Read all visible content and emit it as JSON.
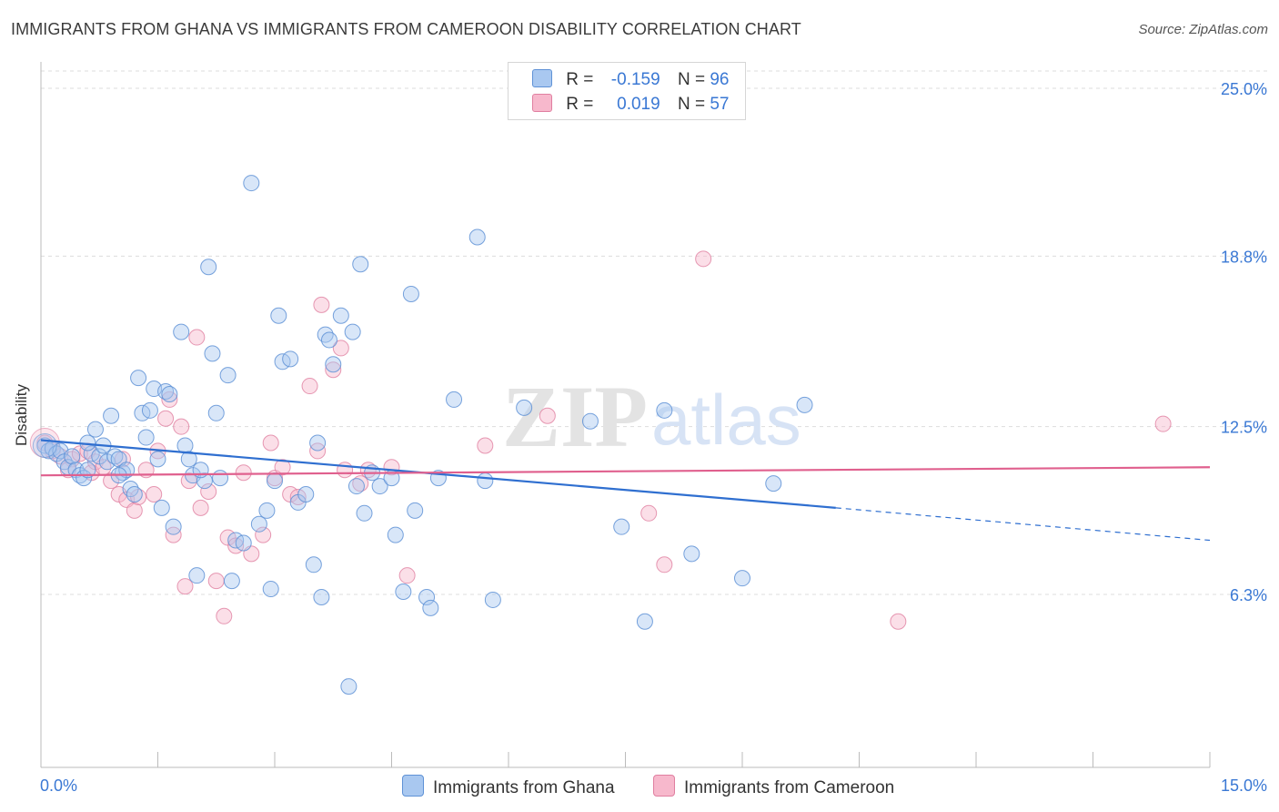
{
  "title": "IMMIGRANTS FROM GHANA VS IMMIGRANTS FROM CAMEROON DISABILITY CORRELATION CHART",
  "source": "Source: ZipAtlas.com",
  "watermark": {
    "zip": "ZIP",
    "atlas": "atlas"
  },
  "legend": {
    "ghana": {
      "r_label": "R =",
      "r_value": "-0.159",
      "n_label": "N =",
      "n_value": "96"
    },
    "cameroon": {
      "r_label": "R =",
      "r_value": "0.019",
      "n_label": "N =",
      "n_value": "57"
    }
  },
  "bottom_legend": {
    "ghana": "Immigrants from Ghana",
    "cameroon": "Immigrants from Cameroon"
  },
  "colors": {
    "ghana_fill": "#a9c8f0",
    "ghana_stroke": "#5f92d6",
    "ghana_line": "#2f6fd0",
    "cameroon_fill": "#f7b8cc",
    "cameroon_stroke": "#e07fa0",
    "cameroon_line": "#e0608e",
    "axis_label": "#3a78d4",
    "grid": "#dddddd"
  },
  "chart_data": {
    "type": "scatter",
    "title": "IMMIGRANTS FROM GHANA VS IMMIGRANTS FROM CAMEROON DISABILITY CORRELATION CHART",
    "xlabel": "",
    "ylabel": "Disability",
    "xlim": [
      0,
      15
    ],
    "ylim": [
      0,
      27
    ],
    "x_tick_labels": [
      "0.0%",
      "15.0%"
    ],
    "y_ticks": [
      6.3,
      12.5,
      18.8,
      25.0
    ],
    "y_tick_labels": [
      "6.3%",
      "12.5%",
      "18.8%",
      "25.0%"
    ],
    "grid": true,
    "legend_position": "top-center",
    "series": [
      {
        "name": "Immigrants from Ghana",
        "R": -0.159,
        "N": 96,
        "trend": {
          "x0": 0,
          "y0": 12.0,
          "x1": 10.2,
          "y1": 9.5,
          "dash_to_x": 15,
          "dash_to_y": 8.3
        },
        "points": [
          [
            0.05,
            11.8
          ],
          [
            0.1,
            11.6
          ],
          [
            0.15,
            11.7
          ],
          [
            0.2,
            11.5
          ],
          [
            0.25,
            11.6
          ],
          [
            0.3,
            11.2
          ],
          [
            0.35,
            11.0
          ],
          [
            0.4,
            11.4
          ],
          [
            0.45,
            10.9
          ],
          [
            0.5,
            10.7
          ],
          [
            0.55,
            10.6
          ],
          [
            0.6,
            10.9
          ],
          [
            0.65,
            11.5
          ],
          [
            0.7,
            12.4
          ],
          [
            0.75,
            11.4
          ],
          [
            0.8,
            11.8
          ],
          [
            0.85,
            11.2
          ],
          [
            0.9,
            12.9
          ],
          [
            0.95,
            11.4
          ],
          [
            1.0,
            11.3
          ],
          [
            1.05,
            10.8
          ],
          [
            1.1,
            10.9
          ],
          [
            1.15,
            10.2
          ],
          [
            1.2,
            10.0
          ],
          [
            1.25,
            14.3
          ],
          [
            1.3,
            13.0
          ],
          [
            1.35,
            12.1
          ],
          [
            1.4,
            13.1
          ],
          [
            1.45,
            13.9
          ],
          [
            1.5,
            11.3
          ],
          [
            1.55,
            9.5
          ],
          [
            1.6,
            13.8
          ],
          [
            1.65,
            13.7
          ],
          [
            1.7,
            8.8
          ],
          [
            1.8,
            16.0
          ],
          [
            1.85,
            11.8
          ],
          [
            1.9,
            11.3
          ],
          [
            1.95,
            10.7
          ],
          [
            2.0,
            7.0
          ],
          [
            2.1,
            10.5
          ],
          [
            2.15,
            18.4
          ],
          [
            2.2,
            15.2
          ],
          [
            2.25,
            13.0
          ],
          [
            2.3,
            10.6
          ],
          [
            2.4,
            14.4
          ],
          [
            2.45,
            6.8
          ],
          [
            2.5,
            8.3
          ],
          [
            2.6,
            8.2
          ],
          [
            2.7,
            21.5
          ],
          [
            2.8,
            8.9
          ],
          [
            2.9,
            9.4
          ],
          [
            2.95,
            6.5
          ],
          [
            3.0,
            10.5
          ],
          [
            3.05,
            16.6
          ],
          [
            3.1,
            14.9
          ],
          [
            3.2,
            15.0
          ],
          [
            3.3,
            9.7
          ],
          [
            3.4,
            10.0
          ],
          [
            3.5,
            7.4
          ],
          [
            3.55,
            11.9
          ],
          [
            3.6,
            6.2
          ],
          [
            3.65,
            15.9
          ],
          [
            3.7,
            15.7
          ],
          [
            3.75,
            14.8
          ],
          [
            3.85,
            16.6
          ],
          [
            3.95,
            2.9
          ],
          [
            4.0,
            16.0
          ],
          [
            4.05,
            10.3
          ],
          [
            4.1,
            18.5
          ],
          [
            4.15,
            9.3
          ],
          [
            4.25,
            10.8
          ],
          [
            4.35,
            10.3
          ],
          [
            4.5,
            10.6
          ],
          [
            4.55,
            8.5
          ],
          [
            4.65,
            6.4
          ],
          [
            4.75,
            17.4
          ],
          [
            4.8,
            9.4
          ],
          [
            4.95,
            6.2
          ],
          [
            5.0,
            5.8
          ],
          [
            5.1,
            10.6
          ],
          [
            5.3,
            13.5
          ],
          [
            5.6,
            19.5
          ],
          [
            5.7,
            10.5
          ],
          [
            5.8,
            6.1
          ],
          [
            6.2,
            13.2
          ],
          [
            7.05,
            12.7
          ],
          [
            7.45,
            8.8
          ],
          [
            7.75,
            5.3
          ],
          [
            8.0,
            13.1
          ],
          [
            8.35,
            7.8
          ],
          [
            9.0,
            6.9
          ],
          [
            9.4,
            10.4
          ],
          [
            9.8,
            13.3
          ],
          [
            0.6,
            11.9
          ],
          [
            1.0,
            10.7
          ],
          [
            2.05,
            10.9
          ]
        ]
      },
      {
        "name": "Immigrants from Cameroon",
        "R": 0.019,
        "N": 57,
        "trend": {
          "x0": 0,
          "y0": 10.7,
          "x1": 15,
          "y1": 11.0
        },
        "points": [
          [
            0.05,
            11.9
          ],
          [
            0.15,
            11.6
          ],
          [
            0.25,
            11.4
          ],
          [
            0.4,
            11.3
          ],
          [
            0.5,
            11.5
          ],
          [
            0.6,
            11.6
          ],
          [
            0.65,
            10.8
          ],
          [
            0.7,
            11.2
          ],
          [
            0.8,
            11.0
          ],
          [
            0.9,
            10.5
          ],
          [
            1.0,
            10.0
          ],
          [
            1.1,
            9.8
          ],
          [
            1.2,
            9.4
          ],
          [
            1.25,
            9.9
          ],
          [
            1.35,
            10.9
          ],
          [
            1.45,
            10.0
          ],
          [
            1.5,
            11.6
          ],
          [
            1.6,
            12.8
          ],
          [
            1.65,
            13.5
          ],
          [
            1.7,
            8.5
          ],
          [
            1.8,
            12.5
          ],
          [
            1.85,
            6.6
          ],
          [
            1.9,
            10.5
          ],
          [
            2.0,
            15.8
          ],
          [
            2.05,
            9.5
          ],
          [
            2.15,
            10.1
          ],
          [
            2.25,
            6.8
          ],
          [
            2.35,
            5.5
          ],
          [
            2.4,
            8.4
          ],
          [
            2.5,
            8.1
          ],
          [
            2.6,
            10.8
          ],
          [
            2.7,
            7.8
          ],
          [
            2.85,
            8.5
          ],
          [
            3.0,
            10.6
          ],
          [
            3.1,
            11.0
          ],
          [
            3.2,
            10.0
          ],
          [
            3.3,
            9.9
          ],
          [
            3.45,
            14.0
          ],
          [
            3.55,
            11.6
          ],
          [
            3.6,
            17.0
          ],
          [
            3.75,
            14.6
          ],
          [
            3.85,
            15.4
          ],
          [
            3.9,
            10.9
          ],
          [
            4.1,
            10.4
          ],
          [
            4.2,
            10.9
          ],
          [
            4.5,
            11.0
          ],
          [
            4.7,
            7.0
          ],
          [
            5.7,
            11.8
          ],
          [
            6.5,
            12.9
          ],
          [
            7.8,
            9.3
          ],
          [
            8.0,
            7.4
          ],
          [
            8.5,
            18.7
          ],
          [
            11.0,
            5.3
          ],
          [
            14.4,
            12.6
          ],
          [
            0.35,
            10.9
          ],
          [
            1.05,
            11.3
          ],
          [
            2.95,
            11.9
          ]
        ]
      }
    ]
  }
}
